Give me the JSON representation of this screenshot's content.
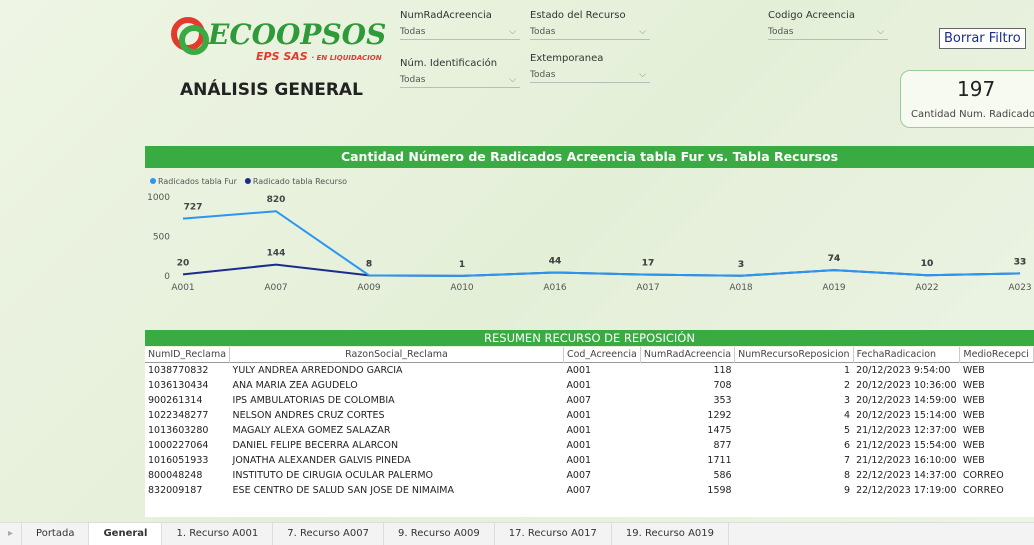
{
  "header": {
    "logo": "ECOOPSOS",
    "logo_sas": "EPS SAS",
    "logo_note": "· EN LIQUIDACION",
    "title": "ANÁLISIS GENERAL"
  },
  "filters": [
    {
      "label": "NumRadAcreencia",
      "value": "Todas"
    },
    {
      "label": "Estado del Recurso",
      "value": "Todas"
    },
    {
      "label": "Codigo Acreencia",
      "value": "Todas"
    },
    {
      "label": "Núm. Identificación",
      "value": "Todas"
    },
    {
      "label": "Extemporanea",
      "value": "Todas"
    }
  ],
  "button": "Borrar Filtro",
  "card": {
    "value": 197,
    "label": "Cantidad Num. Radicado"
  },
  "chart_data": {
    "type": "line",
    "title": "Cantidad Número de Radicados Acreencia tabla Fur vs. Tabla Recursos",
    "categories": [
      "A001",
      "A007",
      "A009",
      "A010",
      "A016",
      "A017",
      "A018",
      "A019",
      "A022",
      "A023"
    ],
    "series": [
      {
        "name": "Radicados tabla Fur",
        "color": "#2b96f0",
        "values": [
          727,
          820,
          8,
          1,
          44,
          17,
          3,
          74,
          10,
          33
        ]
      },
      {
        "name": "Radicado tabla Recurso",
        "color": "#1a2d8f",
        "values": [
          20,
          144,
          8,
          1,
          44,
          17,
          3,
          74,
          10,
          33
        ]
      }
    ],
    "ylim": [
      0,
      1000
    ],
    "yticks": [
      0,
      500,
      1000
    ],
    "grid": false,
    "legend": "top-left"
  },
  "table": {
    "title": "RESUMEN RECURSO DE REPOSICIÓN",
    "columns": [
      "NumID_Reclama",
      "RazonSocial_Reclama",
      "Cod_Acreencia",
      "NumRadAcreencia",
      "NumRecursoReposicion",
      "FechaRadicacion",
      "MedioRecepci"
    ],
    "rows": [
      [
        1038770832,
        "YULY ANDREA ARREDONDO GARCIA",
        "A001",
        118,
        1,
        "20/12/2023 9:54:00",
        "WEB"
      ],
      [
        1036130434,
        "ANA MARIA ZEA AGUDELO",
        "A001",
        708,
        2,
        "20/12/2023 10:36:00",
        "WEB"
      ],
      [
        900261314,
        "IPS AMBULATORIAS DE COLOMBIA",
        "A007",
        353,
        3,
        "20/12/2023 14:59:00",
        "WEB"
      ],
      [
        1022348277,
        "NELSON ANDRES CRUZ CORTES",
        "A001",
        1292,
        4,
        "20/12/2023 15:14:00",
        "WEB"
      ],
      [
        1013603280,
        "MAGALY ALEXA GOMEZ SALAZAR",
        "A001",
        1475,
        5,
        "21/12/2023 12:37:00",
        "WEB"
      ],
      [
        1000227064,
        "DANIEL FELIPE BECERRA ALARCON",
        "A001",
        877,
        6,
        "21/12/2023 15:54:00",
        "WEB"
      ],
      [
        1016051933,
        "JONATHA ALEXANDER GALVIS PINEDA",
        "A001",
        1711,
        7,
        "21/12/2023 16:10:00",
        "WEB"
      ],
      [
        800048248,
        "INSTITUTO DE CIRUGIA OCULAR PALERMO",
        "A007",
        586,
        8,
        "22/12/2023 14:37:00",
        "CORREO"
      ],
      [
        832009187,
        "ESE CENTRO DE SALUD SAN JOSE DE NIMAIMA",
        "A007",
        1598,
        9,
        "22/12/2023 17:19:00",
        "CORREO"
      ]
    ]
  },
  "tabs": [
    "Portada",
    "General",
    "1. Recurso A001",
    "7. Recurso A007",
    "9. Recurso A009",
    "17. Recurso A017",
    "19. Recurso A019"
  ]
}
